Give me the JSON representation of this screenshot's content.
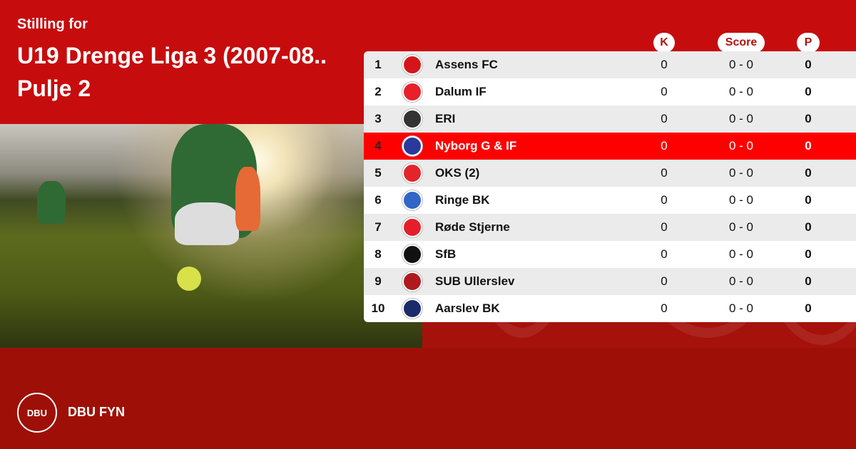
{
  "header": {
    "subtitle": "Stilling for",
    "title": "U19 Drenge Liga 3 (2007-08..",
    "title_line2": "Pulje 2"
  },
  "columns": {
    "k": "K",
    "score": "Score",
    "p": "P"
  },
  "highlight_color": "#ff0000",
  "rows": [
    {
      "pos": "1",
      "team": "Assens FC",
      "k": "0",
      "score": "0 - 0",
      "p": "0",
      "logo_color": "#d4161b"
    },
    {
      "pos": "2",
      "team": "Dalum IF",
      "k": "0",
      "score": "0 - 0",
      "p": "0",
      "logo_color": "#e8202a"
    },
    {
      "pos": "3",
      "team": "ERI",
      "k": "0",
      "score": "0 - 0",
      "p": "0",
      "logo_color": "#333333"
    },
    {
      "pos": "4",
      "team": "Nyborg G & IF",
      "k": "0",
      "score": "0 - 0",
      "p": "0",
      "logo_color": "#2a3a9c"
    },
    {
      "pos": "5",
      "team": "OKS (2)",
      "k": "0",
      "score": "0 - 0",
      "p": "0",
      "logo_color": "#e3252b"
    },
    {
      "pos": "6",
      "team": "Ringe BK",
      "k": "0",
      "score": "0 - 0",
      "p": "0",
      "logo_color": "#2f66c7"
    },
    {
      "pos": "7",
      "team": "Røde Stjerne",
      "k": "0",
      "score": "0 - 0",
      "p": "0",
      "logo_color": "#e3202a"
    },
    {
      "pos": "8",
      "team": "SfB",
      "k": "0",
      "score": "0 - 0",
      "p": "0",
      "logo_color": "#111111"
    },
    {
      "pos": "9",
      "team": "SUB Ullerslev",
      "k": "0",
      "score": "0 - 0",
      "p": "0",
      "logo_color": "#b01a1e"
    },
    {
      "pos": "10",
      "team": "Aarslev BK",
      "k": "0",
      "score": "0 - 0",
      "p": "0",
      "logo_color": "#1b2a6a"
    }
  ],
  "highlighted_pos": "4",
  "footer": {
    "brand": "DBU FYN",
    "logo_text": "DBU"
  }
}
